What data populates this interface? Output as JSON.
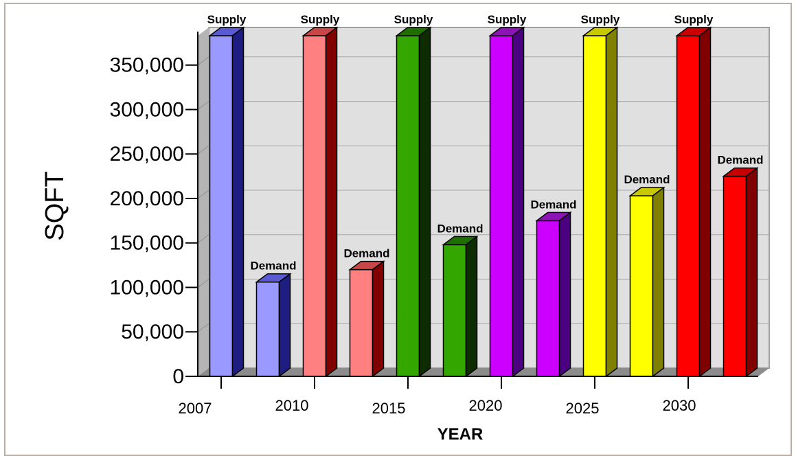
{
  "chart_data": {
    "type": "bar",
    "style": "3d-clustered",
    "categories": [
      "2007",
      "2010",
      "2015",
      "2020",
      "2025",
      "2030"
    ],
    "series": [
      {
        "name": "Supply",
        "values": [
          383000,
          383000,
          383000,
          383000,
          383000,
          383000
        ]
      },
      {
        "name": "Demand",
        "values": [
          106000,
          120000,
          148000,
          175000,
          203000,
          225000
        ]
      }
    ],
    "bar_labels": [
      "Supply",
      "Demand"
    ],
    "group_colors": [
      {
        "front": "#9999ff",
        "side": "#1e1e82",
        "top": "#5a5ad2"
      },
      {
        "front": "#ff8080",
        "side": "#800000",
        "top": "#c84646"
      },
      {
        "front": "#33a600",
        "side": "#0d2c00",
        "top": "#1e6e00"
      },
      {
        "front": "#cc00ff",
        "side": "#4b0082",
        "top": "#8c14b4"
      },
      {
        "front": "#ffff00",
        "side": "#808000",
        "top": "#c8c800"
      },
      {
        "front": "#ff0000",
        "side": "#800000",
        "top": "#c80000"
      }
    ],
    "xlabel": "YEAR",
    "ylabel": "SQFT",
    "ylim": [
      0,
      383000
    ],
    "yticks": [
      0,
      50000,
      100000,
      150000,
      200000,
      250000,
      300000,
      350000
    ],
    "ytick_labels": [
      "0",
      "50,000",
      "100,000",
      "150,000",
      "200,000",
      "250,000",
      "300,000",
      "350,000"
    ],
    "grid": true,
    "legend": "none",
    "plot_background": "#e0e0e0"
  }
}
